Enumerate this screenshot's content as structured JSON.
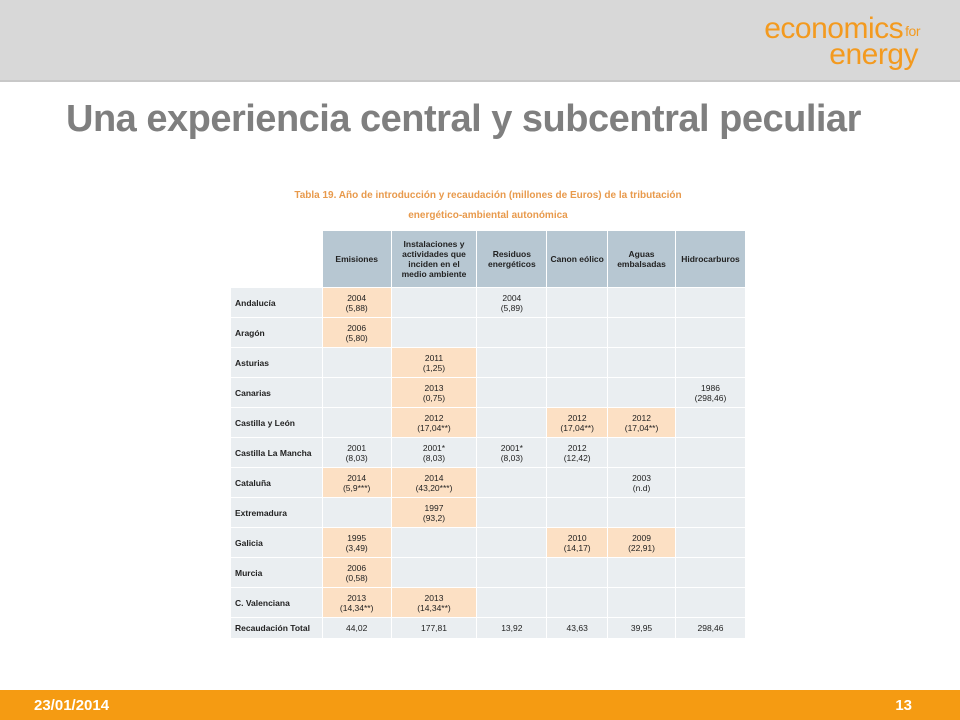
{
  "logo": {
    "line1": "economics",
    "for": "for",
    "line2": "energy"
  },
  "slide": {
    "title": "Una experiencia central y subcentral peculiar"
  },
  "table": {
    "caption_line1": "Tabla 19. Año de introducción y recaudación (millones de Euros) de la tributación",
    "caption_line2": "energético-ambiental autonómica",
    "headers": [
      "Emisiones",
      "Instalaciones y actividades que inciden en el medio ambiente",
      "Residuos energéticos",
      "Canon eólico",
      "Aguas embalsadas",
      "Hidrocarburos"
    ],
    "rows": [
      {
        "region": "Andalucía",
        "cells": [
          "2004\n(5,88)",
          "",
          "2004\n(5,89)",
          "",
          "",
          ""
        ]
      },
      {
        "region": "Aragón",
        "cells": [
          "2006\n(5,80)",
          "",
          "",
          "",
          "",
          ""
        ]
      },
      {
        "region": "Asturias",
        "cells": [
          "",
          "2011\n(1,25)",
          "",
          "",
          "",
          ""
        ]
      },
      {
        "region": "Canarias",
        "cells": [
          "",
          "2013\n(0,75)",
          "",
          "",
          "",
          "1986\n(298,46)"
        ]
      },
      {
        "region": "Castilla y León",
        "cells": [
          "",
          "2012\n(17,04**)",
          "",
          "2012\n(17,04**)",
          "2012\n(17,04**)",
          ""
        ]
      },
      {
        "region": "Castilla La Mancha",
        "cells": [
          "2001\n(8,03)",
          "2001*\n(8,03)",
          "2001*\n(8,03)",
          "2012\n(12,42)",
          "",
          ""
        ]
      },
      {
        "region": "Cataluña",
        "cells": [
          "2014\n(5,9***)",
          "2014\n(43,20***)",
          "",
          "",
          "2003\n(n.d)",
          ""
        ]
      },
      {
        "region": "Extremadura",
        "cells": [
          "",
          "1997\n(93,2)",
          "",
          "",
          "",
          ""
        ]
      },
      {
        "region": "Galicia",
        "cells": [
          "1995\n(3,49)",
          "",
          "",
          "2010\n(14,17)",
          "2009\n(22,91)",
          ""
        ]
      },
      {
        "region": "Murcia",
        "cells": [
          "2006\n(0,58)",
          "",
          "",
          "",
          "",
          ""
        ]
      },
      {
        "region": "C. Valenciana",
        "cells": [
          "2013\n(14,34**)",
          "2013\n(14,34**)",
          "",
          "",
          "",
          ""
        ]
      }
    ],
    "total": {
      "label": "Recaudación Total",
      "values": [
        "44,02",
        "177,81",
        "13,92",
        "43,63",
        "39,95",
        "298,46"
      ]
    }
  },
  "footer": {
    "date": "23/01/2014",
    "page": "13"
  },
  "colors": {
    "accent": "#f59b12",
    "title": "#7f7f7f",
    "header_bg": "#b7c7d2",
    "highlight": "#fce0c4",
    "cell_bg": "#eaeef1"
  }
}
